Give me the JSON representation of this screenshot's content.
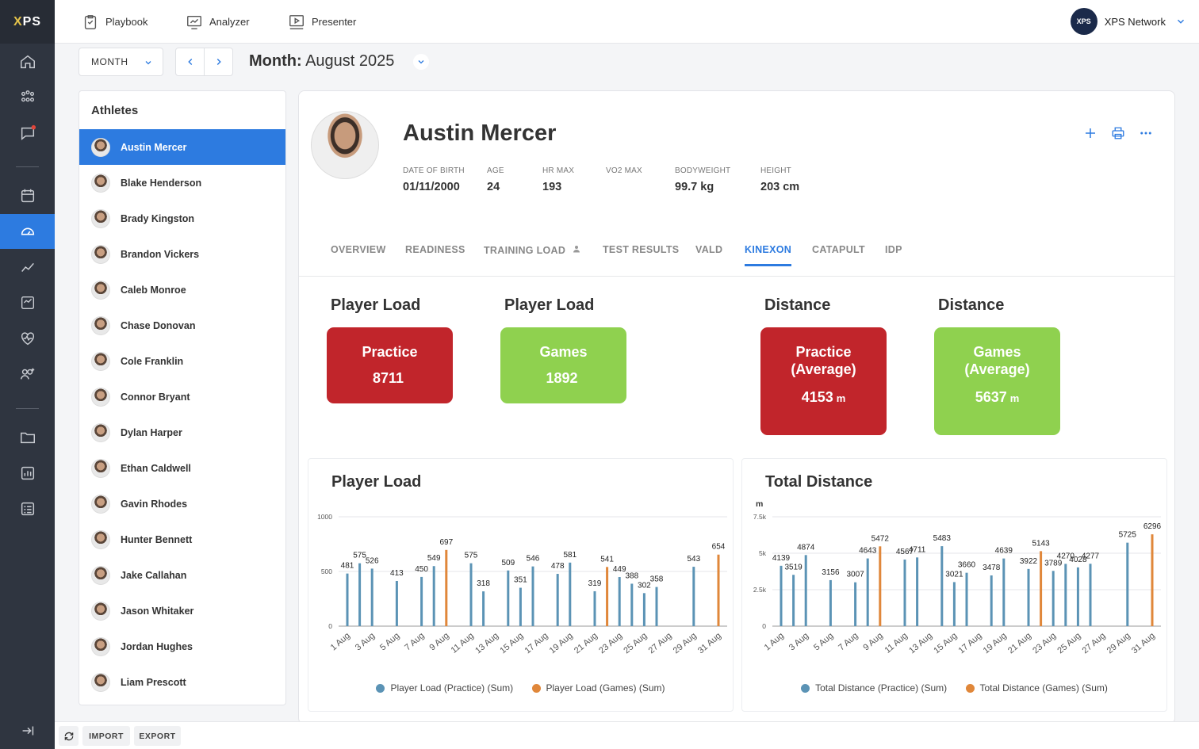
{
  "brand": {
    "logo_text": "PS",
    "logo_x": "X"
  },
  "topnav": {
    "playbook": "Playbook",
    "analyzer": "Analyzer",
    "presenter": "Presenter",
    "network_badge": "XPS",
    "network_name": "XPS Network"
  },
  "toolbar": {
    "period_select": "MONTH",
    "month_label": "Month:",
    "month_value": "August 2025"
  },
  "athletes": {
    "title": "Athletes",
    "items": [
      "Austin Mercer",
      "Blake Henderson",
      "Brady Kingston",
      "Brandon Vickers",
      "Caleb Monroe",
      "Chase Donovan",
      "Cole Franklin",
      "Connor Bryant",
      "Dylan Harper",
      "Ethan Caldwell",
      "Gavin Rhodes",
      "Hunter Bennett",
      "Jake Callahan",
      "Jason Whitaker",
      "Jordan Hughes",
      "Liam Prescott"
    ],
    "selected": "Austin Mercer"
  },
  "profile": {
    "name": "Austin Mercer",
    "stats": [
      {
        "label": "DATE OF BIRTH",
        "value": "01/11/2000"
      },
      {
        "label": "AGE",
        "value": "24"
      },
      {
        "label": "HR MAX",
        "value": "193"
      },
      {
        "label": "VO2 MAX",
        "value": ""
      },
      {
        "label": "BODYWEIGHT",
        "value": "99.7 kg"
      },
      {
        "label": "HEIGHT",
        "value": "203 cm"
      }
    ]
  },
  "tabs": [
    "OVERVIEW",
    "READINESS",
    "TRAINING LOAD",
    "TEST RESULTS",
    "VALD",
    "KINEXON",
    "CATAPULT",
    "IDP"
  ],
  "active_tab": "KINEXON",
  "kpis": [
    {
      "title": "Player Load",
      "label": "Practice",
      "value": "8711",
      "unit": "",
      "color": "#c1252b"
    },
    {
      "title": "Player Load",
      "label": "Games",
      "value": "1892",
      "unit": "",
      "color": "#8fd14f"
    },
    {
      "title": "Distance",
      "label": "Practice (Average)",
      "value": "4153",
      "unit": "m",
      "color": "#c1252b"
    },
    {
      "title": "Distance",
      "label": "Games (Average)",
      "value": "5637",
      "unit": "m",
      "color": "#8fd14f"
    }
  ],
  "chart_data": [
    {
      "type": "bar",
      "title": "Player Load",
      "xlabel": "",
      "ylabel": "",
      "ylim": [
        0,
        1000
      ],
      "yticks": [
        "0",
        "500",
        "1000"
      ],
      "xticks": [
        "1 Aug",
        "3 Aug",
        "5 Aug",
        "7 Aug",
        "9 Aug",
        "11 Aug",
        "13 Aug",
        "15 Aug",
        "17 Aug",
        "19 Aug",
        "21 Aug",
        "23 Aug",
        "25 Aug",
        "27 Aug",
        "29 Aug",
        "31 Aug"
      ],
      "series": [
        {
          "name": "Player Load (Practice) (Sum)",
          "color": "#5b93b5",
          "points": [
            [
              1,
              481
            ],
            [
              2,
              575
            ],
            [
              3,
              526
            ],
            [
              5,
              413
            ],
            [
              7,
              450
            ],
            [
              8,
              549
            ],
            [
              11,
              575
            ],
            [
              12,
              318
            ],
            [
              14,
              509
            ],
            [
              15,
              351
            ],
            [
              16,
              546
            ],
            [
              18,
              478
            ],
            [
              19,
              581
            ],
            [
              21,
              319
            ],
            [
              23,
              449
            ],
            [
              24,
              388
            ],
            [
              25,
              302
            ],
            [
              26,
              358
            ],
            [
              29,
              543
            ]
          ]
        },
        {
          "name": "Player Load (Games) (Sum)",
          "color": "#e0873a",
          "points": [
            [
              9,
              697
            ],
            [
              22,
              541
            ],
            [
              31,
              654
            ]
          ]
        }
      ]
    },
    {
      "type": "bar",
      "title": "Total Distance",
      "xlabel": "",
      "ylabel": "m",
      "ylim": [
        0,
        7500
      ],
      "yticks": [
        "0",
        "2.5k",
        "5k",
        "7.5k"
      ],
      "xticks": [
        "1 Aug",
        "3 Aug",
        "5 Aug",
        "7 Aug",
        "9 Aug",
        "11 Aug",
        "13 Aug",
        "15 Aug",
        "17 Aug",
        "19 Aug",
        "21 Aug",
        "23 Aug",
        "25 Aug",
        "27 Aug",
        "29 Aug",
        "31 Aug"
      ],
      "series": [
        {
          "name": "Total Distance (Practice) (Sum)",
          "color": "#5b93b5",
          "points": [
            [
              1,
              4139
            ],
            [
              2,
              3519
            ],
            [
              3,
              4874
            ],
            [
              5,
              3156
            ],
            [
              7,
              3007
            ],
            [
              8,
              4643
            ],
            [
              11,
              4567
            ],
            [
              12,
              4711
            ],
            [
              14,
              5483
            ],
            [
              15,
              3021
            ],
            [
              16,
              3660
            ],
            [
              18,
              3478
            ],
            [
              19,
              4639
            ],
            [
              21,
              3922
            ],
            [
              23,
              3789
            ],
            [
              24,
              4270
            ],
            [
              25,
              4028
            ],
            [
              26,
              4277
            ],
            [
              29,
              5725
            ]
          ]
        },
        {
          "name": "Total Distance (Games) (Sum)",
          "color": "#e0873a",
          "points": [
            [
              9,
              5472
            ],
            [
              22,
              5143
            ],
            [
              31,
              6296
            ]
          ]
        }
      ]
    }
  ],
  "bottombar": {
    "import": "IMPORT",
    "export": "EXPORT"
  }
}
